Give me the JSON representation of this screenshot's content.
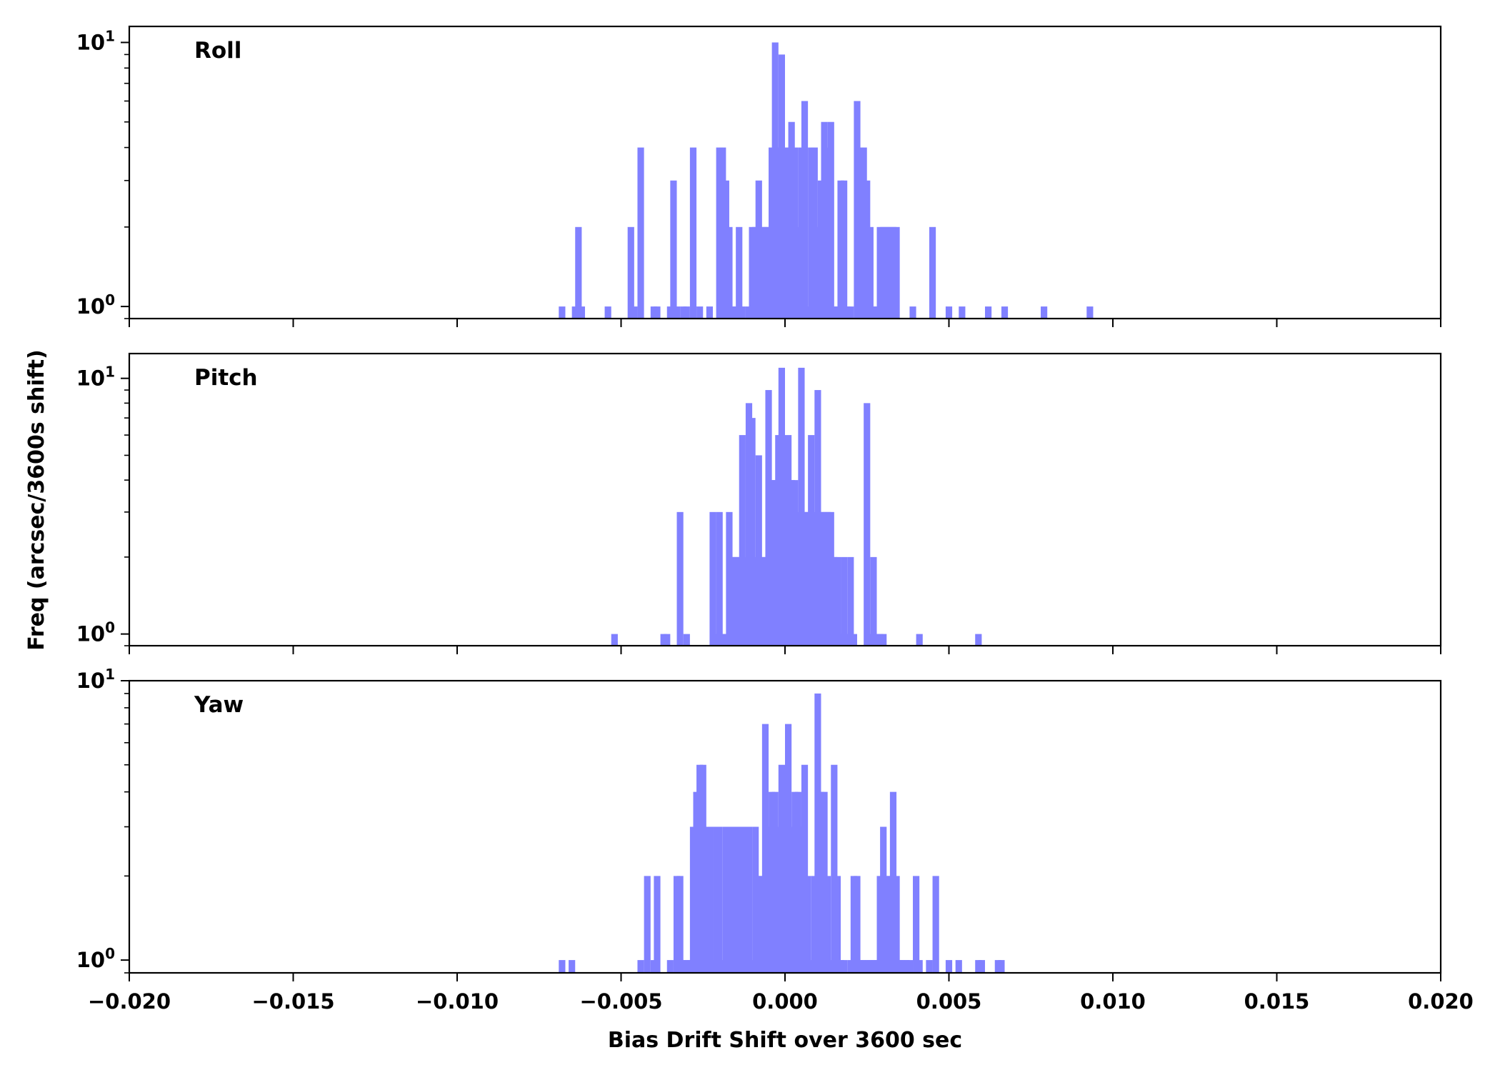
{
  "chart_data": {
    "type": "bar",
    "xlabel": "Bias Drift Shift over 3600 sec",
    "ylabel": "Freq (arcsec/3600s shift)",
    "xlim": [
      -0.02,
      0.02
    ],
    "x_ticks": [
      "−0.020",
      "−0.015",
      "−0.010",
      "−0.005",
      "0.000",
      "0.005",
      "0.010",
      "0.015",
      "0.020"
    ],
    "x_tick_values": [
      -0.02,
      -0.015,
      -0.01,
      -0.005,
      0.0,
      0.005,
      0.01,
      0.015,
      0.02
    ],
    "y_scale": "log",
    "y_tick_base": "10",
    "y_ticks": [
      {
        "value": 1,
        "exp": "0"
      },
      {
        "value": 10,
        "exp": "1"
      }
    ],
    "bar_color": "#8080ff",
    "bin_width": 0.0002,
    "panels": [
      {
        "name": "Roll",
        "ylim": [
          0.9,
          11.5
        ],
        "bins": [
          [
            -0.0069,
            1
          ],
          [
            -0.0065,
            1
          ],
          [
            -0.0064,
            2
          ],
          [
            -0.0063,
            1
          ],
          [
            -0.0055,
            1
          ],
          [
            -0.0048,
            2
          ],
          [
            -0.0047,
            1
          ],
          [
            -0.0045,
            4
          ],
          [
            -0.0041,
            1
          ],
          [
            -0.004,
            1
          ],
          [
            -0.0036,
            1
          ],
          [
            -0.0035,
            3
          ],
          [
            -0.0034,
            1
          ],
          [
            -0.0032,
            1
          ],
          [
            -0.0031,
            1
          ],
          [
            -0.0029,
            4
          ],
          [
            -0.0027,
            1
          ],
          [
            -0.0024,
            1
          ],
          [
            -0.0021,
            4
          ],
          [
            -0.002,
            4
          ],
          [
            -0.0019,
            3
          ],
          [
            -0.0018,
            2
          ],
          [
            -0.0017,
            1
          ],
          [
            -0.0016,
            1
          ],
          [
            -0.0015,
            2
          ],
          [
            -0.0014,
            1
          ],
          [
            -0.0012,
            1
          ],
          [
            -0.0011,
            2
          ],
          [
            -0.001,
            2
          ],
          [
            -0.0009,
            3
          ],
          [
            -0.0008,
            2
          ],
          [
            -0.0007,
            2
          ],
          [
            -0.0006,
            2
          ],
          [
            -0.0005,
            4
          ],
          [
            -0.0004,
            10
          ],
          [
            -0.0003,
            4
          ],
          [
            -0.0002,
            9
          ],
          [
            -0.0001,
            4
          ],
          [
            0.0,
            4
          ],
          [
            0.0001,
            5
          ],
          [
            0.0002,
            4
          ],
          [
            0.0003,
            2
          ],
          [
            0.0004,
            4
          ],
          [
            0.0005,
            6
          ],
          [
            0.0006,
            1
          ],
          [
            0.0007,
            4
          ],
          [
            0.0008,
            4
          ],
          [
            0.0009,
            2
          ],
          [
            0.001,
            3
          ],
          [
            0.0011,
            5
          ],
          [
            0.0012,
            4
          ],
          [
            0.0013,
            5
          ],
          [
            0.0014,
            1
          ],
          [
            0.0015,
            1
          ],
          [
            0.0016,
            3
          ],
          [
            0.0017,
            3
          ],
          [
            0.0018,
            1
          ],
          [
            0.0019,
            1
          ],
          [
            0.0021,
            6
          ],
          [
            0.0022,
            4
          ],
          [
            0.0023,
            4
          ],
          [
            0.0024,
            3
          ],
          [
            0.0025,
            2
          ],
          [
            0.0026,
            1
          ],
          [
            0.0027,
            1
          ],
          [
            0.0028,
            2
          ],
          [
            0.0029,
            2
          ],
          [
            0.003,
            2
          ],
          [
            0.0031,
            2
          ],
          [
            0.0032,
            2
          ],
          [
            0.0033,
            2
          ],
          [
            0.0038,
            1
          ],
          [
            0.0044,
            2
          ],
          [
            0.0049,
            1
          ],
          [
            0.0053,
            1
          ],
          [
            0.0061,
            1
          ],
          [
            0.0066,
            1
          ],
          [
            0.0078,
            1
          ],
          [
            0.0092,
            1
          ]
        ]
      },
      {
        "name": "Pitch",
        "ylim": [
          0.9,
          12.5
        ],
        "bins": [
          [
            -0.0053,
            1
          ],
          [
            -0.0038,
            1
          ],
          [
            -0.0037,
            1
          ],
          [
            -0.0033,
            3
          ],
          [
            -0.0031,
            1
          ],
          [
            -0.0023,
            3
          ],
          [
            -0.0022,
            1
          ],
          [
            -0.0021,
            3
          ],
          [
            -0.002,
            1
          ],
          [
            -0.0019,
            1
          ],
          [
            -0.0018,
            3
          ],
          [
            -0.0017,
            2
          ],
          [
            -0.0016,
            2
          ],
          [
            -0.0015,
            2
          ],
          [
            -0.0014,
            6
          ],
          [
            -0.0013,
            2
          ],
          [
            -0.0012,
            8
          ],
          [
            -0.0011,
            7
          ],
          [
            -0.001,
            2
          ],
          [
            -0.0009,
            5
          ],
          [
            -0.0008,
            2
          ],
          [
            -0.0007,
            2
          ],
          [
            -0.0006,
            9
          ],
          [
            -0.0005,
            4
          ],
          [
            -0.0004,
            4
          ],
          [
            -0.0003,
            6
          ],
          [
            -0.0002,
            11
          ],
          [
            -0.0001,
            4
          ],
          [
            0.0,
            6
          ],
          [
            0.0001,
            4
          ],
          [
            0.0002,
            4
          ],
          [
            0.0003,
            3
          ],
          [
            0.0004,
            11
          ],
          [
            0.0005,
            3
          ],
          [
            0.0006,
            3
          ],
          [
            0.0007,
            6
          ],
          [
            0.0008,
            3
          ],
          [
            0.0009,
            9
          ],
          [
            0.001,
            3
          ],
          [
            0.0011,
            3
          ],
          [
            0.0012,
            3
          ],
          [
            0.0013,
            3
          ],
          [
            0.0014,
            2
          ],
          [
            0.0015,
            2
          ],
          [
            0.0016,
            1
          ],
          [
            0.0017,
            2
          ],
          [
            0.0018,
            1
          ],
          [
            0.0019,
            2
          ],
          [
            0.002,
            1
          ],
          [
            0.0024,
            8
          ],
          [
            0.0025,
            1
          ],
          [
            0.0026,
            2
          ],
          [
            0.0027,
            1
          ],
          [
            0.0028,
            1
          ],
          [
            0.0029,
            1
          ],
          [
            0.004,
            1
          ],
          [
            0.0058,
            1
          ]
        ]
      },
      {
        "name": "Yaw",
        "ylim": [
          0.9,
          10.0
        ],
        "bins": [
          [
            -0.0069,
            1
          ],
          [
            -0.0066,
            1
          ],
          [
            -0.0045,
            1
          ],
          [
            -0.0043,
            2
          ],
          [
            -0.0041,
            1
          ],
          [
            -0.004,
            2
          ],
          [
            -0.0036,
            1
          ],
          [
            -0.0034,
            2
          ],
          [
            -0.0033,
            2
          ],
          [
            -0.0032,
            1
          ],
          [
            -0.0031,
            1
          ],
          [
            -0.003,
            1
          ],
          [
            -0.0029,
            3
          ],
          [
            -0.0028,
            4
          ],
          [
            -0.0027,
            5
          ],
          [
            -0.0026,
            5
          ],
          [
            -0.0025,
            3
          ],
          [
            -0.0024,
            3
          ],
          [
            -0.0023,
            1
          ],
          [
            -0.0022,
            3
          ],
          [
            -0.0021,
            3
          ],
          [
            -0.002,
            1
          ],
          [
            -0.0019,
            3
          ],
          [
            -0.0018,
            3
          ],
          [
            -0.0017,
            3
          ],
          [
            -0.0016,
            3
          ],
          [
            -0.0015,
            3
          ],
          [
            -0.0014,
            3
          ],
          [
            -0.0013,
            3
          ],
          [
            -0.0012,
            3
          ],
          [
            -0.0011,
            1
          ],
          [
            -0.001,
            3
          ],
          [
            -0.0009,
            2
          ],
          [
            -0.0008,
            2
          ],
          [
            -0.0007,
            7
          ],
          [
            -0.0006,
            3
          ],
          [
            -0.0005,
            4
          ],
          [
            -0.0004,
            4
          ],
          [
            -0.0003,
            3
          ],
          [
            -0.0002,
            5
          ],
          [
            -0.0001,
            2
          ],
          [
            0.0,
            7
          ],
          [
            0.0001,
            3
          ],
          [
            0.0002,
            4
          ],
          [
            0.0003,
            4
          ],
          [
            0.0004,
            3
          ],
          [
            0.0005,
            5
          ],
          [
            0.0006,
            2
          ],
          [
            0.0007,
            1
          ],
          [
            0.0008,
            2
          ],
          [
            0.0009,
            9
          ],
          [
            0.001,
            4
          ],
          [
            0.0011,
            4
          ],
          [
            0.0012,
            2
          ],
          [
            0.0013,
            1
          ],
          [
            0.0014,
            5
          ],
          [
            0.0015,
            2
          ],
          [
            0.0016,
            1
          ],
          [
            0.0017,
            1
          ],
          [
            0.0019,
            1
          ],
          [
            0.002,
            2
          ],
          [
            0.0021,
            2
          ],
          [
            0.0022,
            1
          ],
          [
            0.0023,
            1
          ],
          [
            0.0024,
            1
          ],
          [
            0.0025,
            1
          ],
          [
            0.0026,
            1
          ],
          [
            0.0027,
            1
          ],
          [
            0.0028,
            2
          ],
          [
            0.0029,
            3
          ],
          [
            0.003,
            2
          ],
          [
            0.0031,
            2
          ],
          [
            0.0032,
            4
          ],
          [
            0.0033,
            2
          ],
          [
            0.0034,
            1
          ],
          [
            0.0035,
            1
          ],
          [
            0.0036,
            1
          ],
          [
            0.0037,
            1
          ],
          [
            0.0039,
            2
          ],
          [
            0.004,
            1
          ],
          [
            0.0043,
            1
          ],
          [
            0.0045,
            2
          ],
          [
            0.0049,
            1
          ],
          [
            0.0052,
            1
          ],
          [
            0.0058,
            1
          ],
          [
            0.0059,
            1
          ],
          [
            0.0064,
            1
          ],
          [
            0.0065,
            1
          ]
        ]
      }
    ]
  }
}
